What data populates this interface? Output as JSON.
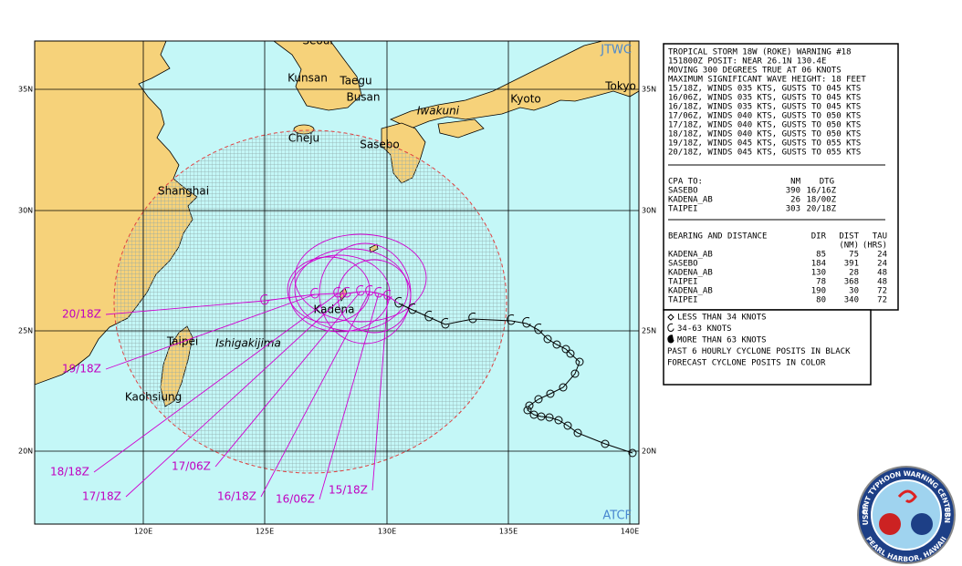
{
  "map": {
    "corner_labels": {
      "top": "JTWC",
      "bottom": "ATCF"
    },
    "lat_labels": [
      "35N",
      "30N",
      "25N",
      "20N"
    ],
    "lon_labels": [
      "120E",
      "125E",
      "130E",
      "135E",
      "140E"
    ],
    "cities": [
      "Seoul",
      "Kunsan",
      "Taegu",
      "Busan",
      "Iwakuni",
      "Kyoto",
      "Tokyo",
      "Cheju",
      "Sasebo",
      "Shanghai",
      "Kadena",
      "Taipei",
      "Ishigakijima",
      "Kaohsiung"
    ],
    "forecast_labels": [
      "20/18Z",
      "19/18Z",
      "18/18Z",
      "17/18Z",
      "17/06Z",
      "16/18Z",
      "16/06Z",
      "15/18Z"
    ]
  },
  "warning": {
    "lines": [
      "TROPICAL STORM 18W (ROKE) WARNING #18",
      "151800Z POSIT: NEAR 26.1N 130.4E",
      "MOVING 300 DEGREES TRUE AT 06 KNOTS",
      "MAXIMUM SIGNIFICANT WAVE HEIGHT: 18 FEET",
      "15/18Z, WINDS 035 KTS, GUSTS TO 045 KTS",
      "16/06Z, WINDS 035 KTS, GUSTS TO 045 KTS",
      "16/18Z, WINDS 035 KTS, GUSTS TO 045 KTS",
      "17/06Z, WINDS 040 KTS, GUSTS TO 050 KTS",
      "17/18Z, WINDS 040 KTS, GUSTS TO 050 KTS",
      "18/18Z, WINDS 040 KTS, GUSTS TO 050 KTS",
      "19/18Z, WINDS 045 KTS, GUSTS TO 055 KTS",
      "20/18Z, WINDS 045 KTS, GUSTS TO 055 KTS"
    ],
    "cpa": {
      "header": [
        "CPA TO:",
        "NM",
        "DTG"
      ],
      "rows": [
        [
          "SASEBO",
          "390",
          "16/16Z"
        ],
        [
          "KADENA_AB",
          "26",
          "18/00Z"
        ],
        [
          "TAIPEI",
          "303",
          "20/18Z"
        ]
      ]
    },
    "bearing": {
      "header": [
        "BEARING AND DISTANCE",
        "DIR",
        "DIST",
        "TAU"
      ],
      "subheader": [
        "(NM)",
        "(HRS)"
      ],
      "rows": [
        [
          "KADENA_AB",
          "85",
          "75",
          "24"
        ],
        [
          "SASEBO",
          "184",
          "391",
          "24"
        ],
        [
          "KADENA_AB",
          "130",
          "28",
          "48"
        ],
        [
          "TAIPEI",
          "78",
          "368",
          "48"
        ],
        [
          "KADENA_AB",
          "190",
          "30",
          "72"
        ],
        [
          "TAIPEI",
          "80",
          "340",
          "72"
        ]
      ]
    }
  },
  "legend": [
    "LESS THAN 34 KNOTS",
    "34-63 KNOTS",
    "MORE THAN 63 KNOTS",
    "PAST 6 HOURLY CYCLONE POSITS IN BLACK",
    "FORECAST CYCLONE POSITS IN COLOR"
  ],
  "logo": {
    "ring_top": "JOINT TYPHOON WARNING CENTER",
    "ring_bottom": "PEARL HARBOR, HAWAII",
    "left": "USAF",
    "right": "USN"
  }
}
